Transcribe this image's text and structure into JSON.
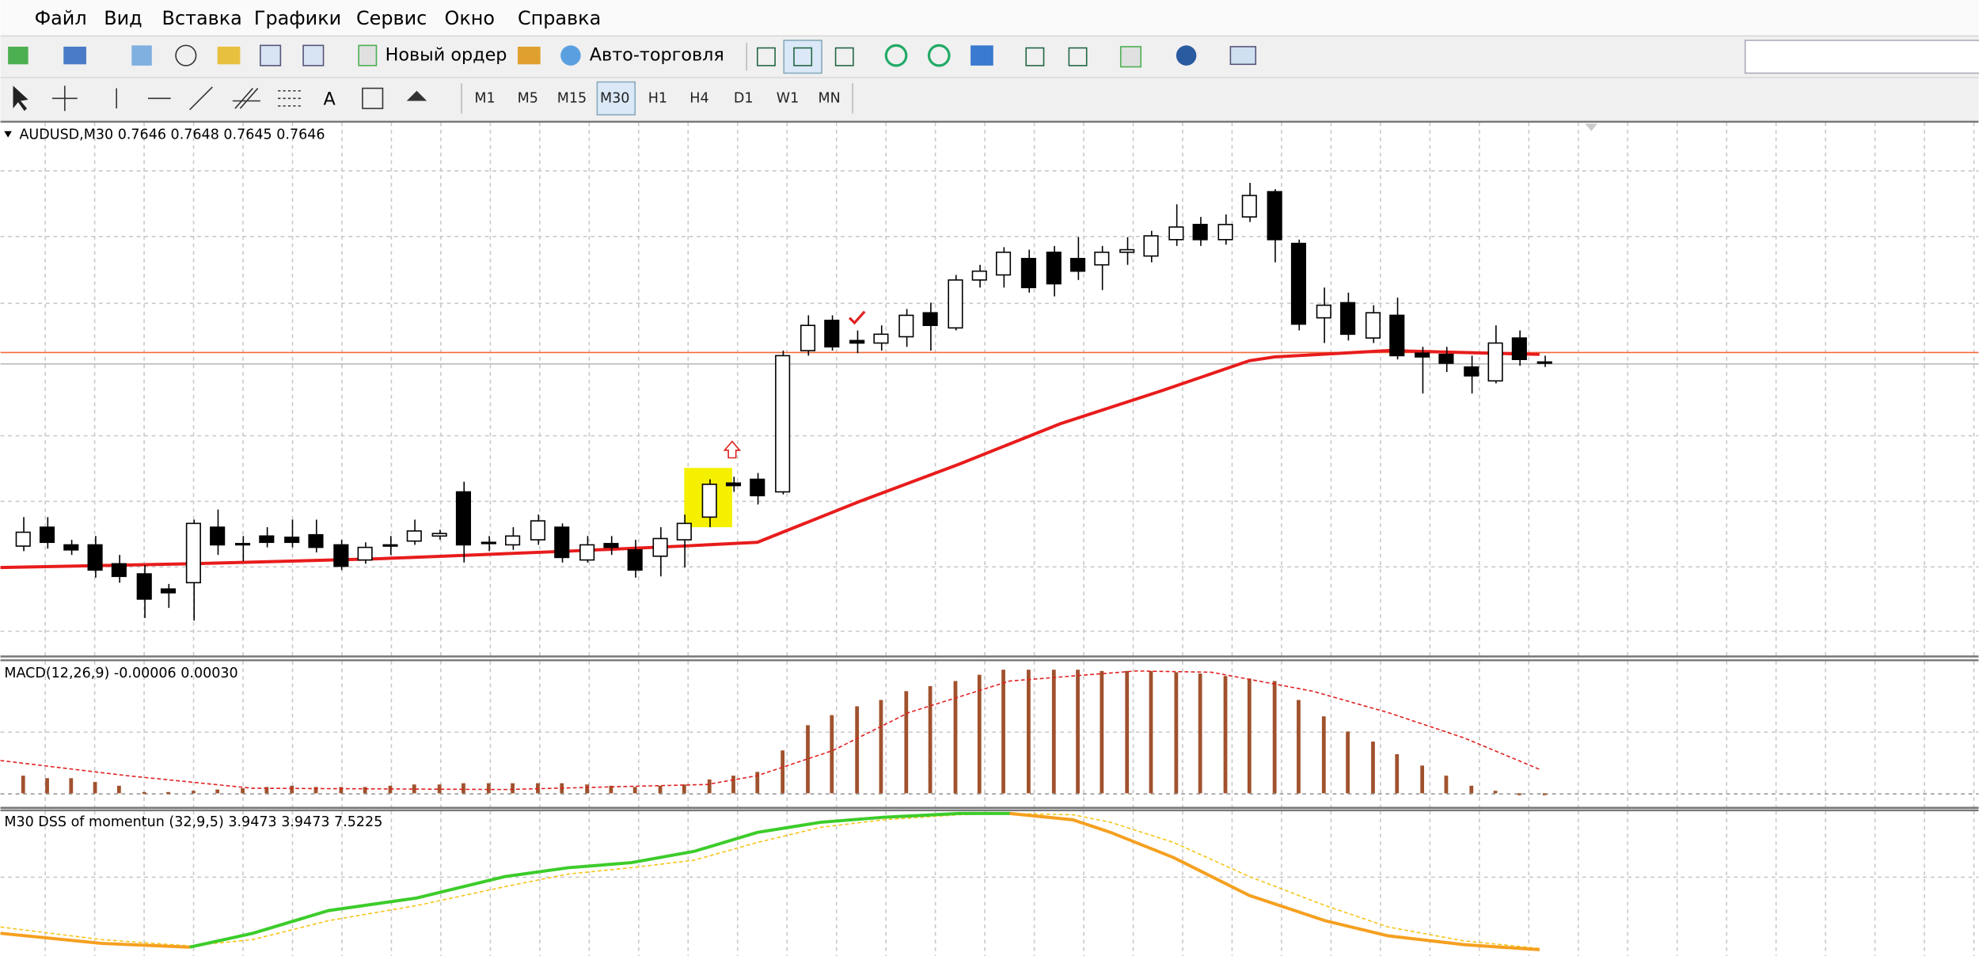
{
  "menu": [
    "Файл",
    "Вид",
    "Вставка",
    "Графики",
    "Сервис",
    "Окно",
    "Справка"
  ],
  "toolbar": {
    "new_order": "Новый ордер",
    "auto_trading": "Авто-торговля"
  },
  "drawing_tools": {
    "text": "A"
  },
  "timeframes": [
    "M1",
    "M5",
    "M15",
    "M30",
    "H1",
    "H4",
    "D1",
    "W1",
    "MN"
  ],
  "chart": {
    "price_header": "AUDUSD,M30  0.7646 0.7648 0.7645 0.7646",
    "macd_header": "MACD(12,26,9) -0.00006 0.00030",
    "dss_header": "M30 DSS of momentun (32,9,5) 3.9473 3.9473 7.5225"
  }
}
